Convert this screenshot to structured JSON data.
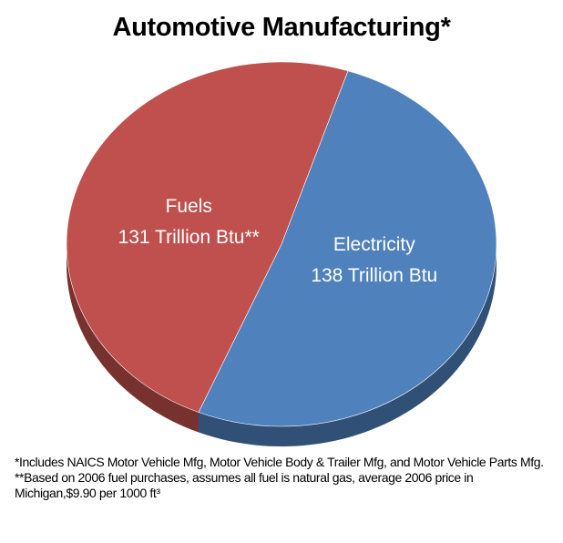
{
  "chart_data": {
    "type": "pie",
    "title": "Automotive Manufacturing*",
    "unit": "Trillion Btu",
    "slices": [
      {
        "name": "Fuels",
        "value": 131,
        "label_line1": "Fuels",
        "label_line2": "131 Trillion Btu**",
        "color": "#C0504D"
      },
      {
        "name": "Electricity",
        "value": 138,
        "label_line1": "Electricity",
        "label_line2": "138 Trillion Btu",
        "color": "#4F81BD"
      }
    ],
    "legend": "none",
    "style": "3d-tilted"
  },
  "footnotes": [
    "*Includes NAICS Motor Vehicle Mfg, Motor Vehicle Body & Trailer Mfg, and Motor Vehicle Parts Mfg.",
    "**Based on 2006 fuel purchases, assumes all fuel is natural gas, average 2006 price in Michigan,$9.90 per 1000 ft³"
  ]
}
